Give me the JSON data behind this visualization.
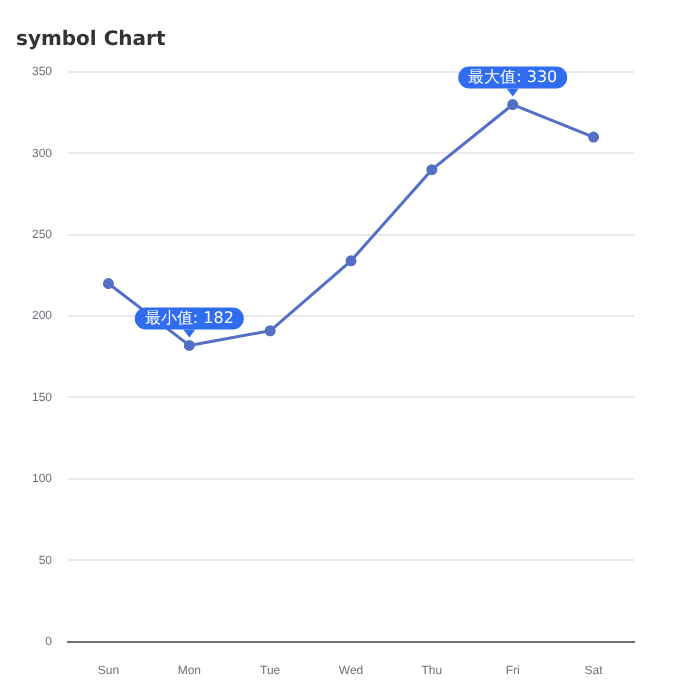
{
  "chart_data": {
    "type": "line",
    "title": "symbol Chart",
    "categories": [
      "Sun",
      "Mon",
      "Tue",
      "Wed",
      "Thu",
      "Fri",
      "Sat"
    ],
    "series": [
      {
        "color": "#5470c6",
        "values": [
          220,
          182,
          191,
          234,
          290,
          330,
          310
        ]
      }
    ],
    "ylim": [
      0,
      350
    ],
    "yticks": [
      0,
      50,
      100,
      150,
      200,
      250,
      300,
      350
    ],
    "grid": "y",
    "marker": "circle",
    "line_style": "solid",
    "annotations": [
      {
        "text": "最小值: 182",
        "x": "Mon",
        "y": 182
      },
      {
        "text": "最大值: 330",
        "x": "Fri",
        "y": 330
      }
    ]
  }
}
